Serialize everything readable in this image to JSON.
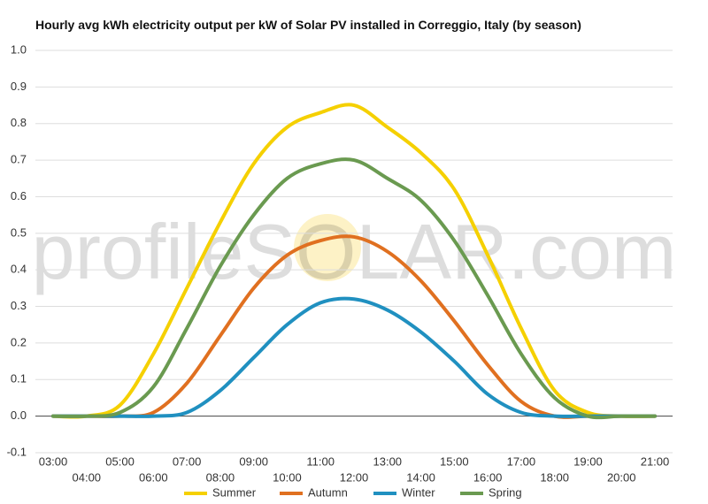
{
  "chart_data": {
    "type": "line",
    "title": "Hourly avg kWh electricity output per kW of Solar PV installed in Correggio, Italy (by season)",
    "watermark": "profileSOLAR.com",
    "categories": [
      "03:00",
      "04:00",
      "05:00",
      "06:00",
      "07:00",
      "08:00",
      "09:00",
      "10:00",
      "11:00",
      "12:00",
      "13:00",
      "14:00",
      "15:00",
      "16:00",
      "17:00",
      "18:00",
      "19:00",
      "20:00",
      "21:00"
    ],
    "series": [
      {
        "name": "Summer",
        "color": "#f5d000",
        "values": [
          0,
          0,
          0.03,
          0.17,
          0.35,
          0.53,
          0.69,
          0.79,
          0.83,
          0.85,
          0.79,
          0.72,
          0.62,
          0.44,
          0.24,
          0.07,
          0.01,
          0,
          0
        ]
      },
      {
        "name": "Autumn",
        "color": "#e07020",
        "values": [
          0,
          0,
          0,
          0.01,
          0.09,
          0.22,
          0.35,
          0.44,
          0.48,
          0.49,
          0.45,
          0.37,
          0.26,
          0.14,
          0.04,
          0,
          0,
          0,
          0
        ]
      },
      {
        "name": "Winter",
        "color": "#2090c0",
        "values": [
          0,
          0,
          0,
          0,
          0.01,
          0.07,
          0.16,
          0.25,
          0.31,
          0.32,
          0.29,
          0.23,
          0.15,
          0.06,
          0.01,
          0,
          0,
          0,
          0
        ]
      },
      {
        "name": "Spring",
        "color": "#6a9a50",
        "values": [
          0,
          0,
          0.01,
          0.08,
          0.24,
          0.41,
          0.55,
          0.65,
          0.69,
          0.7,
          0.65,
          0.59,
          0.48,
          0.33,
          0.17,
          0.05,
          0,
          0,
          0
        ]
      }
    ],
    "ylim": [
      -0.1,
      1.0
    ],
    "yticks": [
      -0.1,
      {
        "value": 0,
        "label": "0.0"
      },
      0.1,
      0.2,
      0.3,
      0.4,
      0.5,
      0.6,
      0.7,
      0.8,
      0.9,
      {
        "value": 1,
        "label": "1.0"
      }
    ],
    "grid": true,
    "legend": "bottom"
  }
}
